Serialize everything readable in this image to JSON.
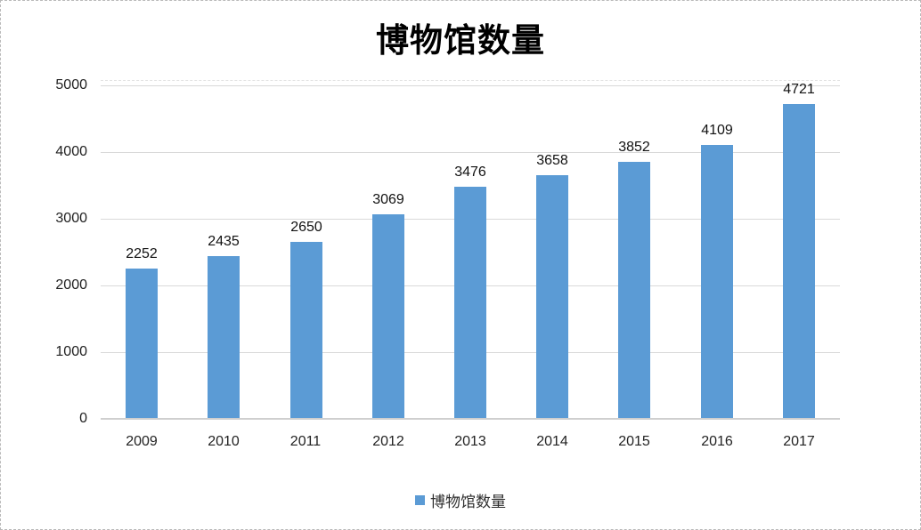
{
  "chart_data": {
    "type": "bar",
    "title": "博物馆数量",
    "categories": [
      "2009",
      "2010",
      "2011",
      "2012",
      "2013",
      "2014",
      "2015",
      "2016",
      "2017"
    ],
    "values": [
      2252,
      2435,
      2650,
      3069,
      3476,
      3658,
      3852,
      4109,
      4721
    ],
    "series_name": "博物馆数量",
    "xlabel": "",
    "ylabel": "",
    "ylim": [
      0,
      5000
    ],
    "ytick_step": 1000,
    "ytick_labels": [
      "0",
      "1000",
      "2000",
      "3000",
      "4000",
      "5000"
    ],
    "grid": true,
    "data_labels_shown": true,
    "legend_position": "bottom",
    "bar_color": "#5b9bd5",
    "gridline_color": "#d9d9d9",
    "axis_line_color": "#cfcfcf"
  },
  "legend": {
    "label": "博物馆数量",
    "swatch_color": "#5b9bd5"
  }
}
